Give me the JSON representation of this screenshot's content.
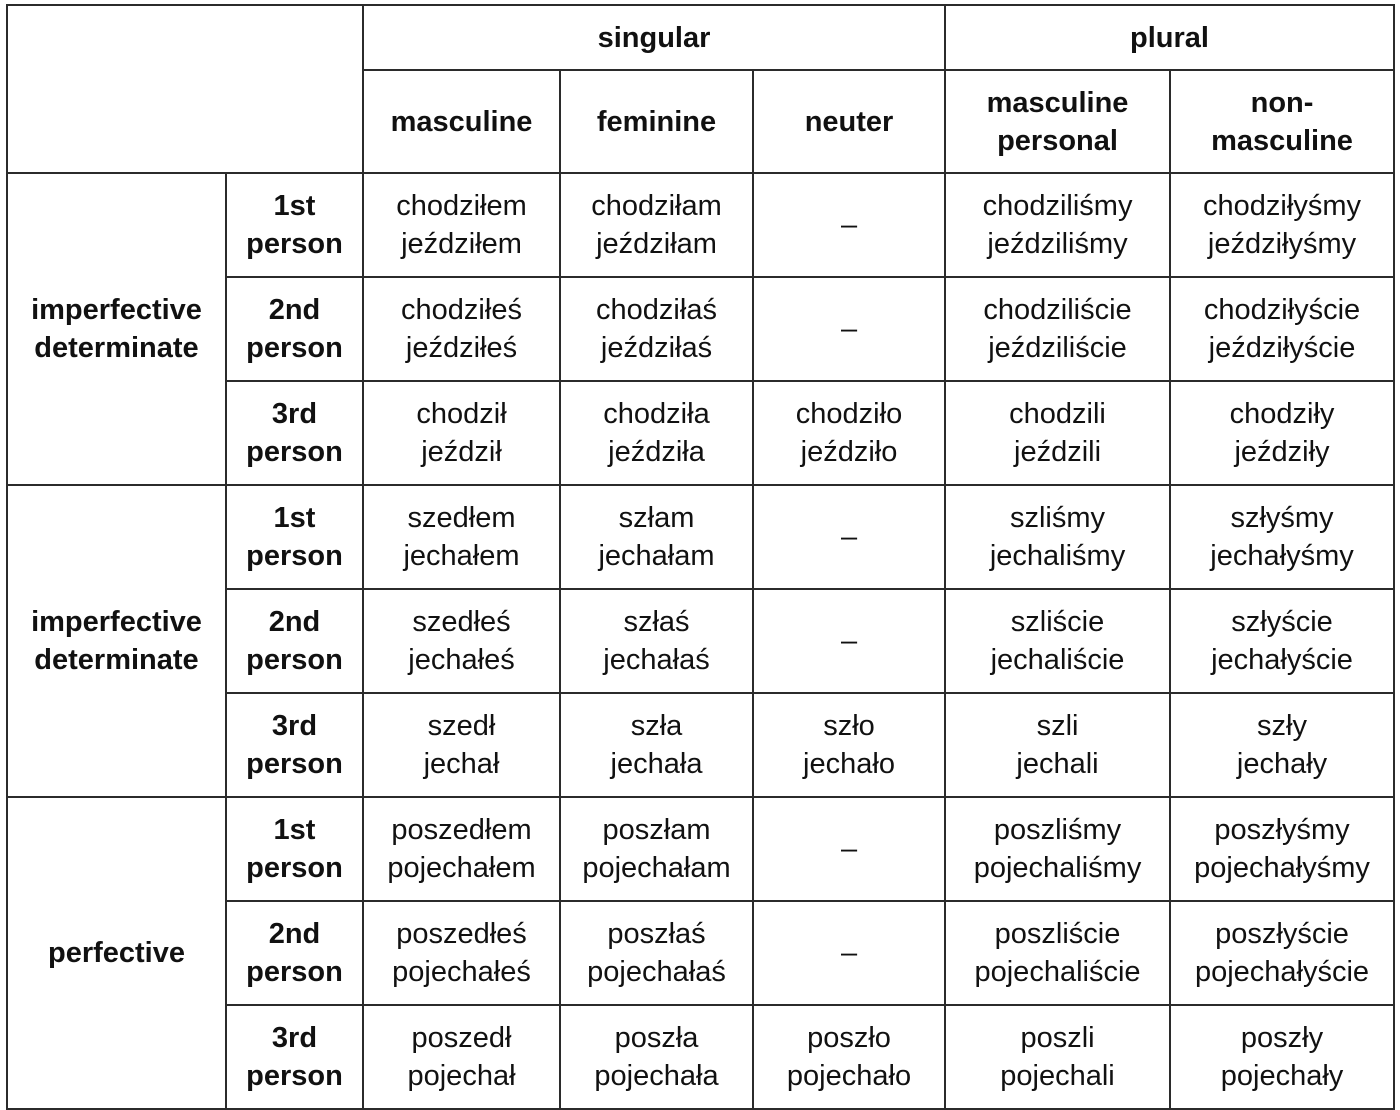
{
  "header": {
    "singular": "singular",
    "plural": "plural",
    "columns": [
      [
        "masculine"
      ],
      [
        "feminine"
      ],
      [
        "neuter"
      ],
      [
        "masculine",
        "personal"
      ],
      [
        "non-",
        "masculine"
      ]
    ]
  },
  "groups": [
    {
      "label": [
        "imperfective",
        "determinate"
      ],
      "rows": [
        {
          "person": [
            "1st",
            "person"
          ],
          "cells": [
            [
              "chodziłem",
              "jeździłem"
            ],
            [
              "chodziłam",
              "jeździłam"
            ],
            [
              "–"
            ],
            [
              "chodziliśmy",
              "jeździliśmy"
            ],
            [
              "chodziłyśmy",
              "jeździłyśmy"
            ]
          ]
        },
        {
          "person": [
            "2nd",
            "person"
          ],
          "cells": [
            [
              "chodziłeś",
              "jeździłeś"
            ],
            [
              "chodziłaś",
              "jeździłaś"
            ],
            [
              "–"
            ],
            [
              "chodziliście",
              "jeździliście"
            ],
            [
              "chodziłyście",
              "jeździłyście"
            ]
          ]
        },
        {
          "person": [
            "3rd",
            "person"
          ],
          "cells": [
            [
              "chodził",
              "jeździł"
            ],
            [
              "chodziła",
              "jeździła"
            ],
            [
              "chodziło",
              "jeździło"
            ],
            [
              "chodzili",
              "jeździli"
            ],
            [
              "chodziły",
              "jeździły"
            ]
          ]
        }
      ]
    },
    {
      "label": [
        "imperfective",
        "determinate"
      ],
      "rows": [
        {
          "person": [
            "1st",
            "person"
          ],
          "cells": [
            [
              "szedłem",
              "jechałem"
            ],
            [
              "szłam",
              "jechałam"
            ],
            [
              "–"
            ],
            [
              "szliśmy",
              "jechaliśmy"
            ],
            [
              "szłyśmy",
              "jechałyśmy"
            ]
          ]
        },
        {
          "person": [
            "2nd",
            "person"
          ],
          "cells": [
            [
              "szedłeś",
              "jechałeś"
            ],
            [
              "szłaś",
              "jechałaś"
            ],
            [
              "–"
            ],
            [
              "szliście",
              "jechaliście"
            ],
            [
              "szłyście",
              "jechałyście"
            ]
          ]
        },
        {
          "person": [
            "3rd",
            "person"
          ],
          "cells": [
            [
              "szedł",
              "jechał"
            ],
            [
              "szła",
              "jechała"
            ],
            [
              "szło",
              "jechało"
            ],
            [
              "szli",
              "jechali"
            ],
            [
              "szły",
              "jechały"
            ]
          ]
        }
      ]
    },
    {
      "label": [
        "perfective"
      ],
      "rows": [
        {
          "person": [
            "1st",
            "person"
          ],
          "cells": [
            [
              "poszedłem",
              "pojechałem"
            ],
            [
              "poszłam",
              "pojechałam"
            ],
            [
              "–"
            ],
            [
              "poszliśmy",
              "pojechaliśmy"
            ],
            [
              "poszłyśmy",
              "pojechałyśmy"
            ]
          ]
        },
        {
          "person": [
            "2nd",
            "person"
          ],
          "cells": [
            [
              "poszedłeś",
              "pojechałeś"
            ],
            [
              "poszłaś",
              "pojechałaś"
            ],
            [
              "–"
            ],
            [
              "poszliście",
              "pojechaliście"
            ],
            [
              "poszłyście",
              "pojechałyście"
            ]
          ]
        },
        {
          "person": [
            "3rd",
            "person"
          ],
          "cells": [
            [
              "poszedł",
              "pojechał"
            ],
            [
              "poszła",
              "pojechała"
            ],
            [
              "poszło",
              "pojechało"
            ],
            [
              "poszli",
              "pojechali"
            ],
            [
              "poszły",
              "pojechały"
            ]
          ]
        }
      ]
    }
  ]
}
